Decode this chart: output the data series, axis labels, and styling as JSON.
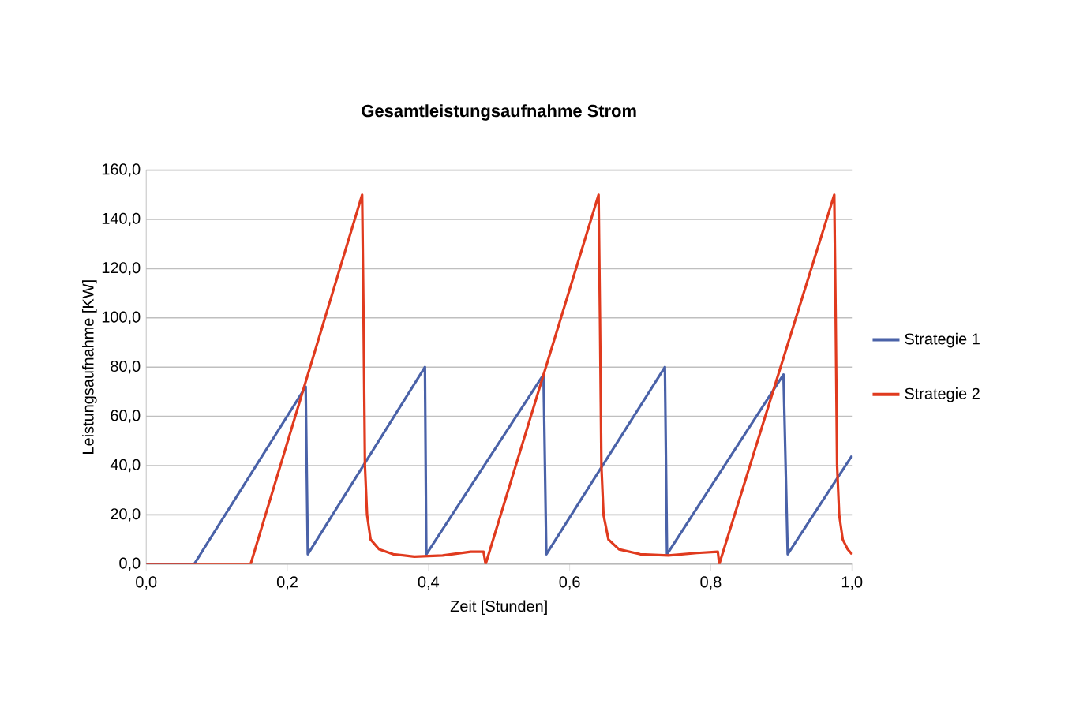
{
  "chart_data": {
    "type": "line",
    "title": "Gesamtleistungsaufnahme Strom",
    "xlabel": "Zeit [Stunden]",
    "ylabel": "Leistungsaufnahme [KW]",
    "xlim": [
      0,
      1
    ],
    "ylim": [
      0,
      160
    ],
    "xticks": [
      {
        "value": 0,
        "label": "0,0"
      },
      {
        "value": 0.2,
        "label": "0,2"
      },
      {
        "value": 0.4,
        "label": "0,4"
      },
      {
        "value": 0.6,
        "label": "0,6"
      },
      {
        "value": 0.8,
        "label": "0,8"
      },
      {
        "value": 1,
        "label": "1,0"
      }
    ],
    "yticks": [
      {
        "value": 0,
        "label": "0,0"
      },
      {
        "value": 20,
        "label": "20,0"
      },
      {
        "value": 40,
        "label": "40,0"
      },
      {
        "value": 60,
        "label": "60,0"
      },
      {
        "value": 80,
        "label": "80,0"
      },
      {
        "value": 100,
        "label": "100,0"
      },
      {
        "value": 120,
        "label": "120,0"
      },
      {
        "value": 140,
        "label": "140,0"
      },
      {
        "value": 160,
        "label": "160,0"
      }
    ],
    "grid": "y",
    "legend": "right",
    "marker": "none",
    "line_style": "solid",
    "series": [
      {
        "name": "Strategie 1",
        "color": "#4a62a8",
        "x": [
          0,
          0.068,
          0.226,
          0.229,
          0.395,
          0.397,
          0.563,
          0.567,
          0.735,
          0.738,
          0.903,
          0.909,
          1.0
        ],
        "values": [
          0,
          0,
          72,
          4,
          80,
          4,
          77,
          4,
          80,
          4,
          77,
          4,
          44
        ]
      },
      {
        "name": "Strategie 2",
        "color": "#e03a1e",
        "x": [
          0,
          0.148,
          0.306,
          0.308,
          0.31,
          0.313,
          0.318,
          0.33,
          0.35,
          0.38,
          0.42,
          0.46,
          0.478,
          0.481,
          0.641,
          0.643,
          0.645,
          0.648,
          0.655,
          0.67,
          0.7,
          0.74,
          0.78,
          0.81,
          0.812,
          0.975,
          0.977,
          0.979,
          0.982,
          0.987,
          0.994,
          1.0
        ],
        "values": [
          0,
          0,
          150,
          100,
          40,
          20,
          10,
          6,
          4,
          3,
          3.5,
          5,
          5,
          0,
          150,
          100,
          40,
          20,
          10,
          6,
          4,
          3.5,
          4.5,
          5,
          0,
          150,
          100,
          40,
          20,
          10,
          6,
          4
        ]
      }
    ]
  }
}
